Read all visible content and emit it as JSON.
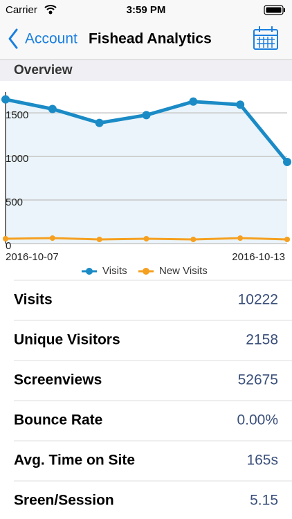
{
  "status_bar": {
    "carrier": "Carrier",
    "time": "3:59 PM"
  },
  "nav": {
    "back": "Account",
    "title": "Fishead Analytics"
  },
  "section": "Overview",
  "chart_data": {
    "type": "line",
    "categories": [
      "2016-10-07",
      null,
      null,
      null,
      null,
      null,
      "2016-10-13"
    ],
    "series": [
      {
        "name": "Visits",
        "color": "#1b8bc6",
        "values": [
          1655,
          1545,
          1385,
          1475,
          1630,
          1595,
          937
        ]
      },
      {
        "name": "New Visits",
        "color": "#f5a020",
        "values": [
          56,
          63,
          48,
          56,
          48,
          63,
          48
        ]
      }
    ],
    "ylim": [
      0,
      1700
    ],
    "yticks": [
      0,
      500,
      1000,
      1500
    ],
    "grid": true,
    "legend": "bottom"
  },
  "stats": [
    {
      "label": "Visits",
      "value": "10222"
    },
    {
      "label": "Unique Visitors",
      "value": "2158"
    },
    {
      "label": "Screenviews",
      "value": "52675"
    },
    {
      "label": "Bounce Rate",
      "value": "0.00%"
    },
    {
      "label": "Avg. Time on Site",
      "value": "165s"
    },
    {
      "label": "Sreen/Session",
      "value": "5.15"
    }
  ]
}
